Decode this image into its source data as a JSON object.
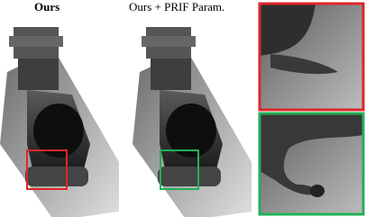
{
  "panels": [
    {
      "label": "Ours"
    },
    {
      "label": "Ours + PRIF Param."
    }
  ]
}
